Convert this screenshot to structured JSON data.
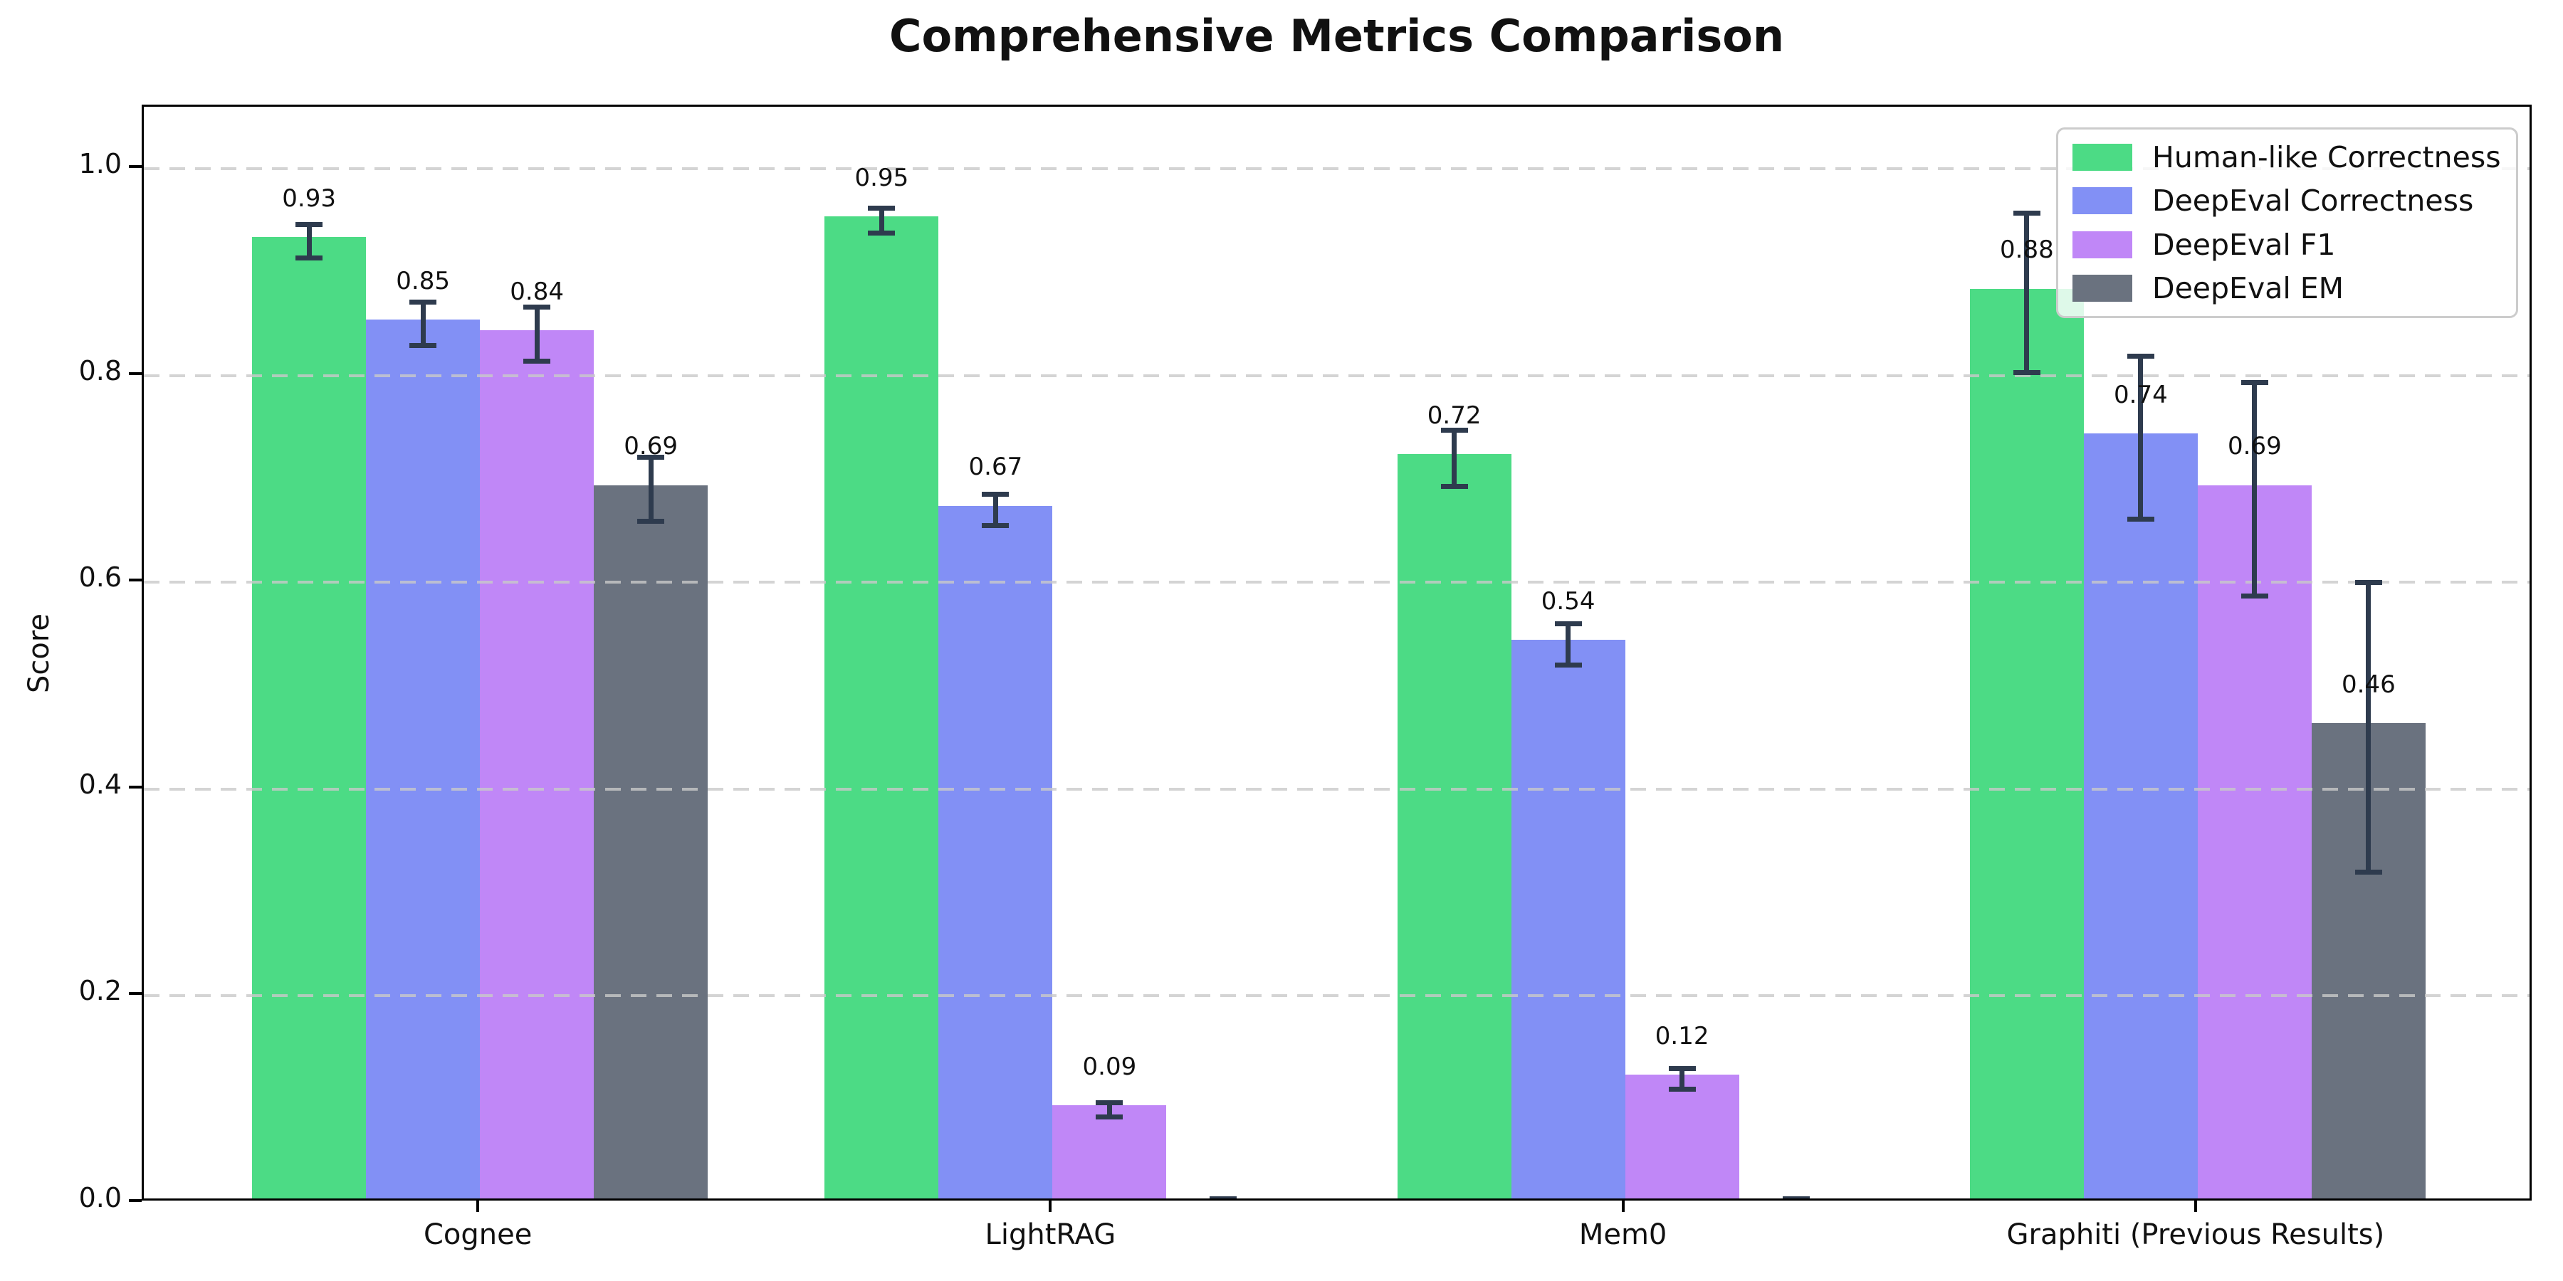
{
  "figure": {
    "title": "Comprehensive Metrics Comparison"
  },
  "chart_data": {
    "type": "bar",
    "title": "Comprehensive Metrics Comparison",
    "xlabel": "",
    "ylabel": "Score",
    "categories": [
      "Cognee",
      "LightRAG",
      "Mem0",
      "Graphiti (Previous Results)"
    ],
    "series": [
      {
        "name": "Human-like Correctness",
        "color": "#4cdb85",
        "values": [
          0.93,
          0.95,
          0.72,
          0.88
        ],
        "errors": [
          0.016,
          0.012,
          0.027,
          0.077
        ],
        "value_labels": [
          "0.93",
          "0.95",
          "0.72",
          "0.88"
        ]
      },
      {
        "name": "DeepEval Correctness",
        "color": "#8290f5",
        "values": [
          0.85,
          0.67,
          0.54,
          0.74
        ],
        "errors": [
          0.021,
          0.015,
          0.02,
          0.079
        ],
        "value_labels": [
          "0.85",
          "0.67",
          "0.54",
          "0.74"
        ]
      },
      {
        "name": "DeepEval F1",
        "color": "#c087f7",
        "values": [
          0.84,
          0.09,
          0.12,
          0.69
        ],
        "errors": [
          0.026,
          0.007,
          0.01,
          0.103
        ],
        "value_labels": [
          "0.84",
          "0.09",
          "0.12",
          "0.69"
        ]
      },
      {
        "name": "DeepEval EM",
        "color": "#6a727f",
        "values": [
          0.69,
          0.0,
          0.0,
          0.46
        ],
        "errors": [
          0.031,
          0.004,
          0.004,
          0.14
        ],
        "value_labels": [
          "0.69",
          "",
          "",
          "0.46"
        ]
      }
    ],
    "ylim": [
      0,
      1.06
    ],
    "yticks": [
      0.0,
      0.2,
      0.4,
      0.6,
      0.8,
      1.0
    ],
    "ytick_labels": [
      "0.0",
      "0.2",
      "0.4",
      "0.6",
      "0.8",
      "1.0"
    ],
    "grid": true,
    "grid_style": "dashed",
    "legend_position": "upper right"
  },
  "styles": {
    "error_bar_color": "#2e3b4e",
    "grid_color": "#c9c9c9",
    "axis_color": "#000000",
    "text_color": "#111111",
    "legend_border_color": "#cccccc",
    "background_color": "#ffffff"
  }
}
